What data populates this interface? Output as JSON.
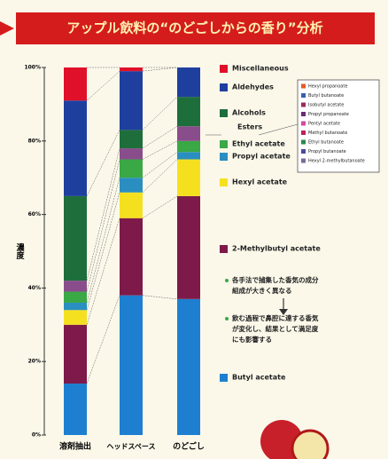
{
  "chart_data": {
    "type": "stacked_bar",
    "title": "アップル飲料の“のどごしからの香り”分析",
    "y_label": "濃度",
    "categories": [
      "溶剤抽出",
      "ヘッドスペース",
      "のどごし"
    ],
    "ylim": [
      0,
      100
    ],
    "yticks": [
      {
        "value": 0,
        "label": "0%"
      },
      {
        "value": 20,
        "label": "20%"
      },
      {
        "value": 40,
        "label": "40%"
      },
      {
        "value": 60,
        "label": "60%"
      },
      {
        "value": 80,
        "label": "80%"
      },
      {
        "value": 100,
        "label": "100%"
      }
    ],
    "series": [
      {
        "name": "Butyl acetate",
        "color": "#1e7fd0",
        "values": [
          14,
          38,
          37
        ]
      },
      {
        "name": "2-Methylbutyl acetate",
        "color": "#7d1a4a",
        "values": [
          16,
          21,
          28
        ]
      },
      {
        "name": "Hexyl acetate",
        "color": "#f5e020",
        "values": [
          4,
          7,
          10
        ]
      },
      {
        "name": "Propyl acetate",
        "color": "#2a8fc0",
        "values": [
          2,
          4,
          2
        ]
      },
      {
        "name": "Ethyl acetate",
        "color": "#39a845",
        "values": [
          3,
          5,
          3
        ]
      },
      {
        "name": "Esters",
        "color": "#8a4d8c",
        "values": [
          3,
          3,
          4
        ]
      },
      {
        "name": "Alcohols",
        "color": "#1e6e3c",
        "values": [
          23,
          5,
          8
        ]
      },
      {
        "name": "Aldehydes",
        "color": "#1f3f9f",
        "values": [
          26,
          16,
          8
        ]
      },
      {
        "name": "Miscellaneous",
        "color": "#e0102a",
        "values": [
          9,
          1,
          0
        ]
      }
    ],
    "ester_breakdown": [
      "Hexyl propanoate",
      "Butyl butanoate",
      "Isobutyl acetate",
      "Propyl propanoate",
      "Pentyl acetate",
      "Methyl butanoate",
      "Ethyl butanoate",
      "Propyl butanoate",
      "Hexyl 2-methylbutanoate"
    ],
    "ester_colors": [
      "#e05a2a",
      "#3a5fb0",
      "#9a2a5a",
      "#6a2a7a",
      "#d04aa0",
      "#c02060",
      "#2a8a4a",
      "#4a4aa0",
      "#7a6a9a"
    ],
    "notes": [
      [
        "各手法で捕集した香気の成分",
        "組成が大きく異なる"
      ],
      [
        "飲む過程で鼻腔に達する香気",
        "が変化し、結果として満足度",
        "にも影響する"
      ]
    ]
  }
}
